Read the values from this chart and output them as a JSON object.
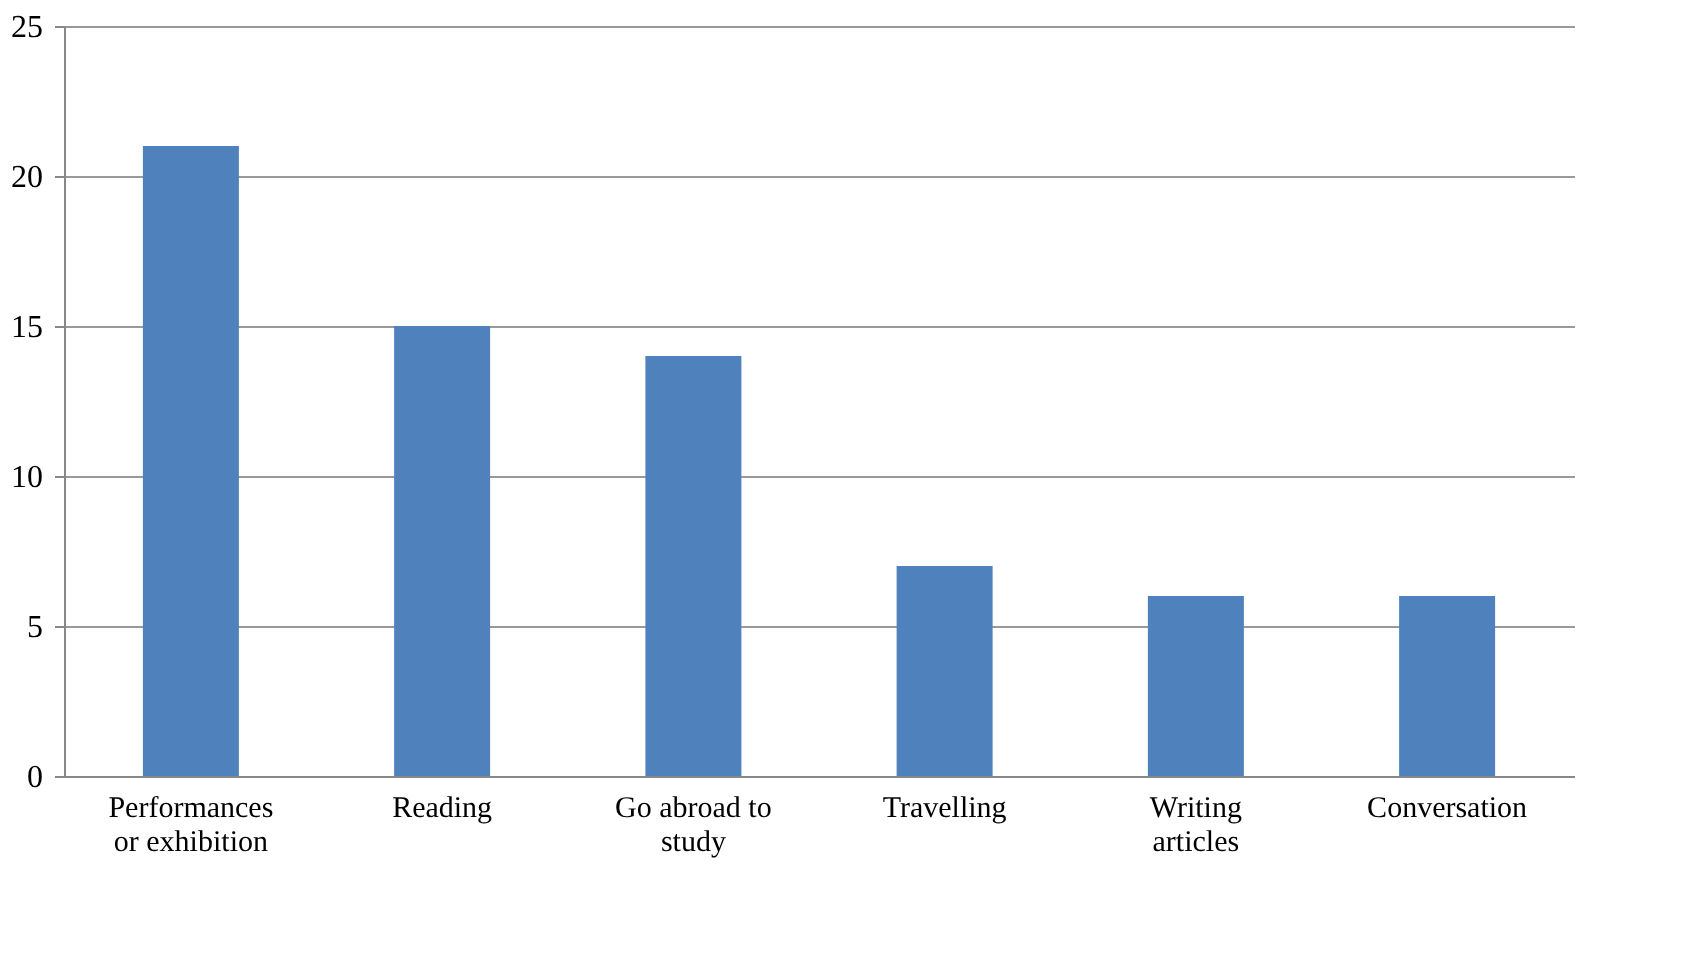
{
  "chart_data": {
    "type": "bar",
    "categories": [
      "Performances or exhibition",
      "Reading",
      "Go abroad to study",
      "Travelling",
      "Writing articles",
      "Conversation"
    ],
    "values": [
      21,
      15,
      14,
      7,
      6,
      6
    ],
    "color": "#4f81bd",
    "ylim": [
      0,
      25
    ],
    "yticks": [
      0,
      5,
      10,
      15,
      20,
      25
    ],
    "grid": "y"
  }
}
